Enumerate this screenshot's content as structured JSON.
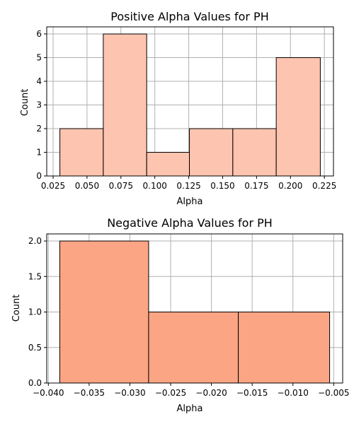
{
  "chart_data": [
    {
      "type": "bar",
      "subtype": "histogram",
      "title": "Positive Alpha Values for PH",
      "xlabel": "Alpha",
      "ylabel": "Count",
      "bin_edges": [
        0.03,
        0.062,
        0.094,
        0.1255,
        0.1575,
        0.1895,
        0.222
      ],
      "values": [
        2,
        6,
        1,
        2,
        2,
        5
      ],
      "xlim": [
        0.0203,
        0.2317
      ],
      "ylim": [
        0,
        6.3
      ],
      "xticks": [
        0.025,
        0.05,
        0.075,
        0.1,
        0.125,
        0.15,
        0.175,
        0.2,
        0.225
      ],
      "xtick_labels": [
        "0.025",
        "0.050",
        "0.075",
        "0.100",
        "0.125",
        "0.150",
        "0.175",
        "0.200",
        "0.225"
      ],
      "yticks": [
        0,
        1,
        2,
        3,
        4,
        5,
        6
      ],
      "ytick_labels": [
        "0",
        "1",
        "2",
        "3",
        "4",
        "5",
        "6"
      ],
      "bar_color": "#fdc4b0",
      "edge_color": "#000000",
      "grid": true
    },
    {
      "type": "bar",
      "subtype": "histogram",
      "title": "Negative Alpha Values for PH",
      "xlabel": "Alpha",
      "ylabel": "Count",
      "bin_edges": [
        -0.0386,
        -0.0277,
        -0.0167,
        -0.0055
      ],
      "values": [
        2,
        1,
        1
      ],
      "xlim": [
        -0.0402,
        -0.0039
      ],
      "ylim": [
        0,
        2.1
      ],
      "xticks": [
        -0.04,
        -0.035,
        -0.03,
        -0.025,
        -0.02,
        -0.015,
        -0.01,
        -0.005
      ],
      "xtick_labels": [
        "−0.040",
        "−0.035",
        "−0.030",
        "−0.025",
        "−0.020",
        "−0.015",
        "−0.010",
        "−0.005"
      ],
      "yticks": [
        0,
        0.5,
        1,
        1.5,
        2
      ],
      "ytick_labels": [
        "0.0",
        "0.5",
        "1.0",
        "1.5",
        "2.0"
      ],
      "bar_color": "#fca584",
      "edge_color": "#000000",
      "grid": true
    }
  ]
}
